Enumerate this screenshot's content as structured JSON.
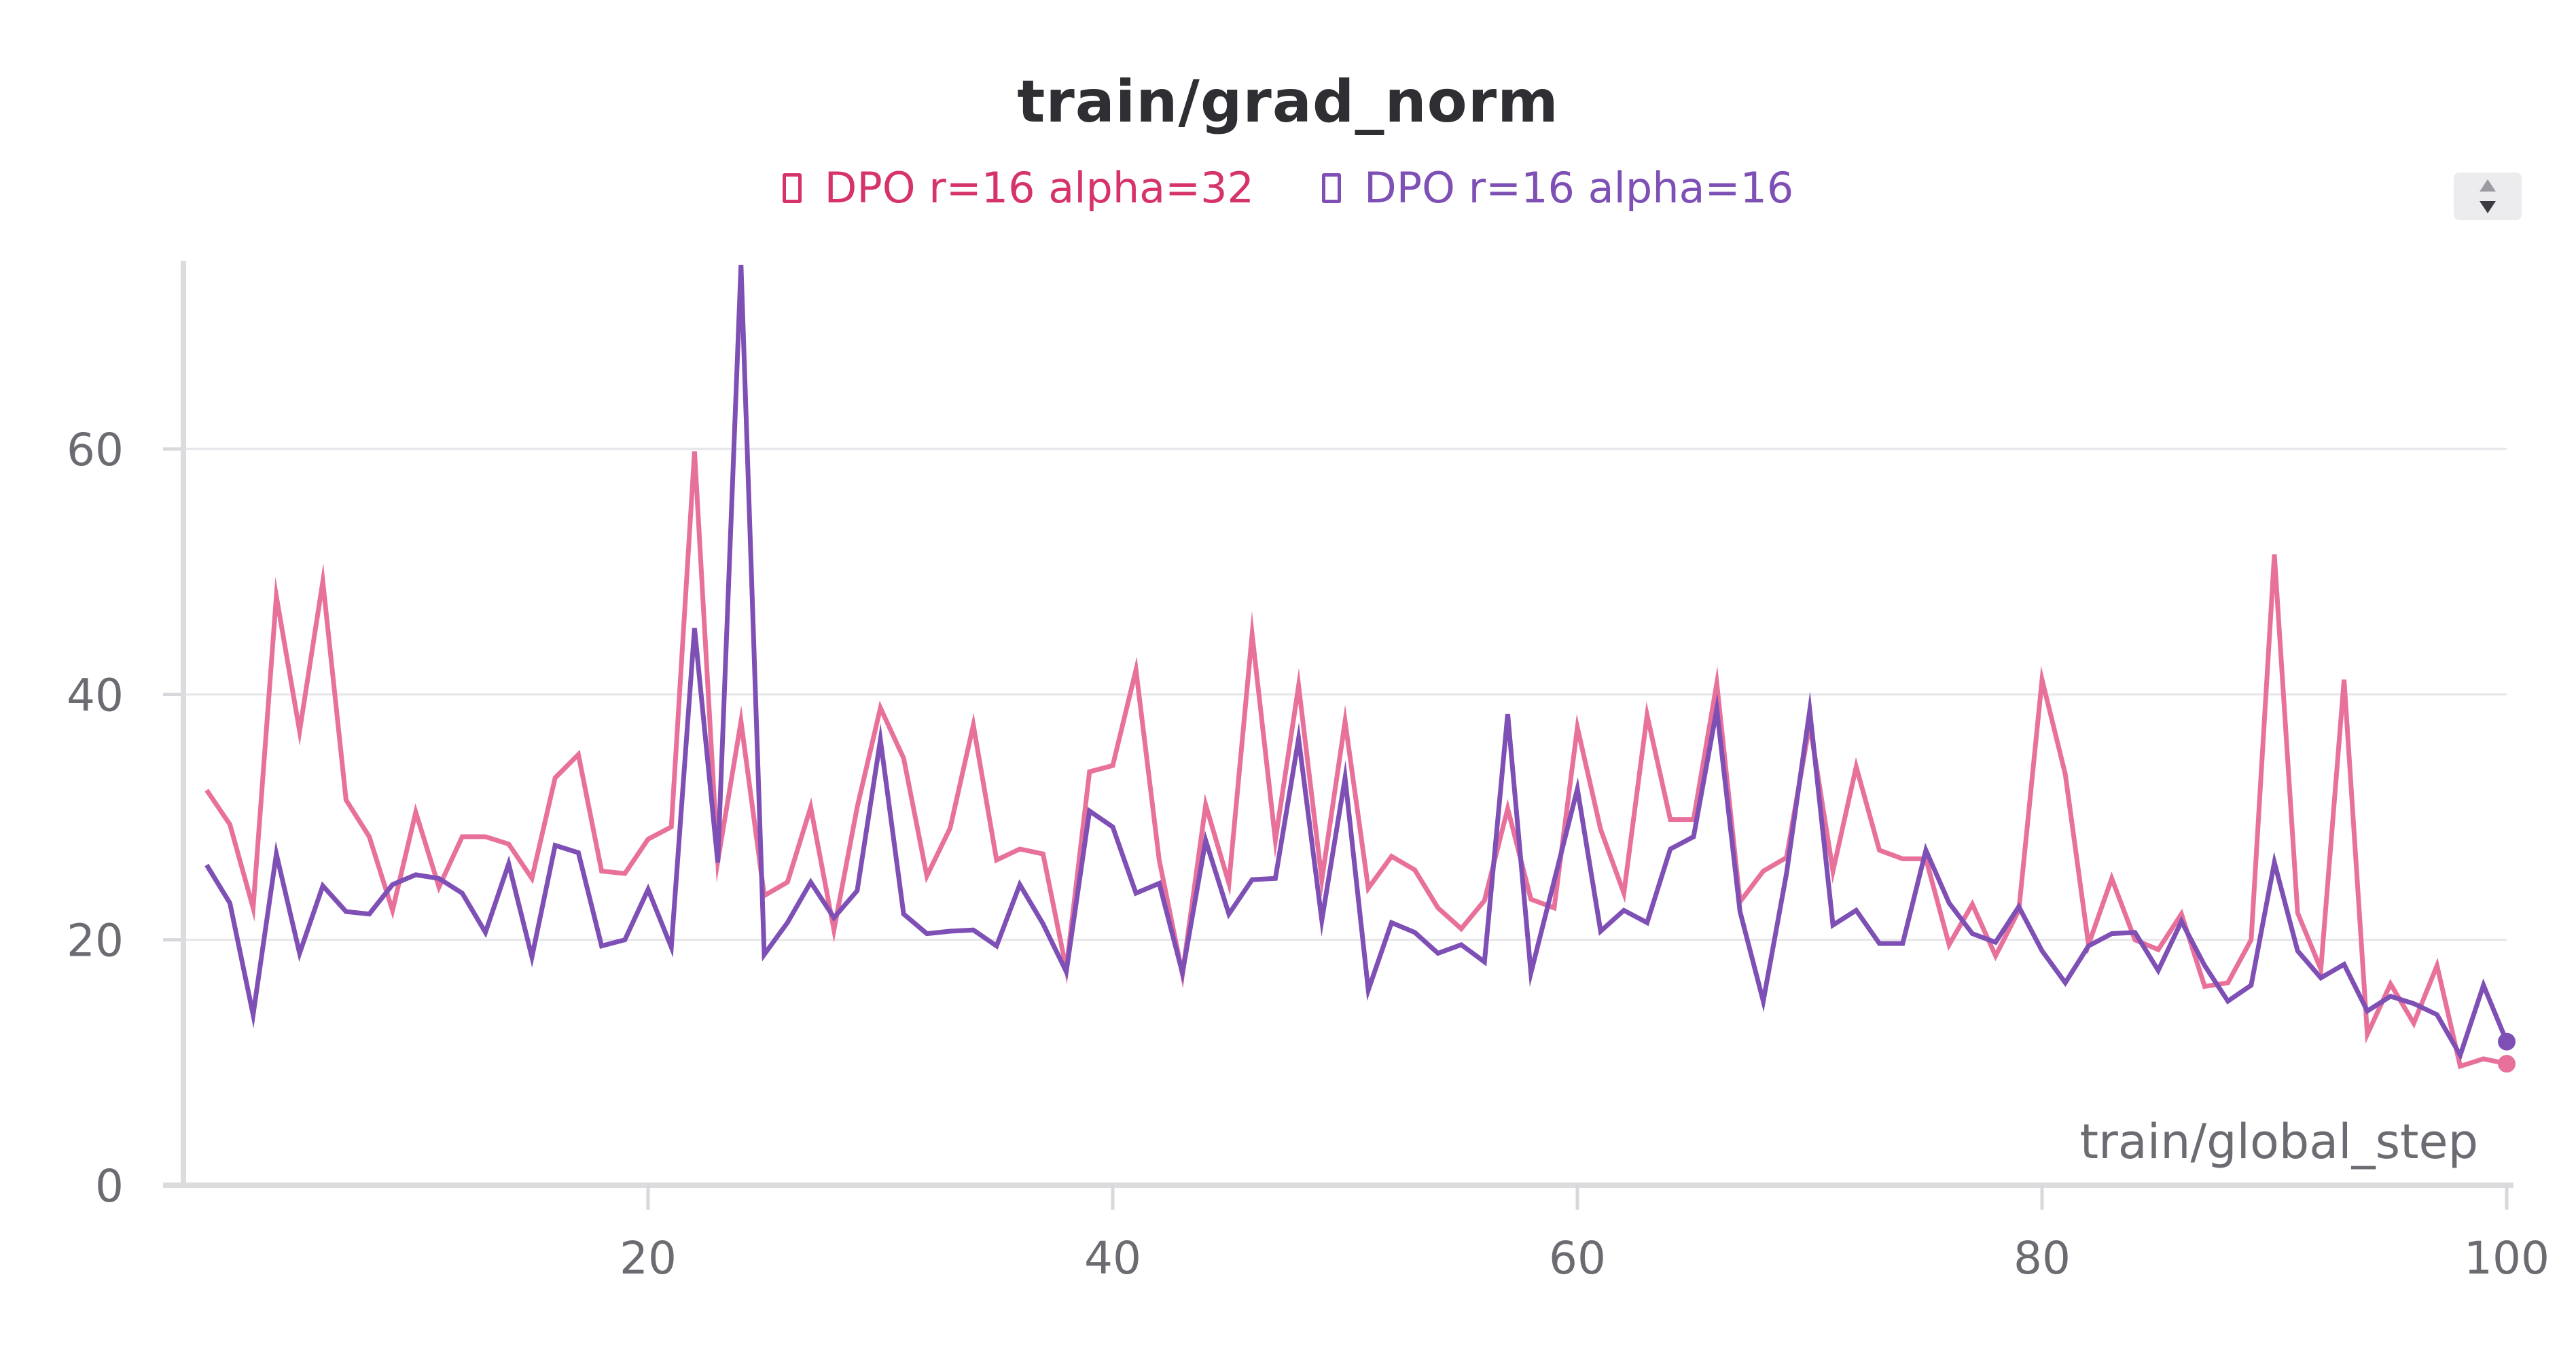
{
  "chart_data": {
    "type": "line",
    "title": "train/grad_norm",
    "xlabel": "train/global_step",
    "ylabel": "",
    "xlim": [
      0,
      100
    ],
    "ylim": [
      0,
      75
    ],
    "x_ticks": [
      20,
      40,
      60,
      80,
      100
    ],
    "x_tick_labels": [
      "20",
      "40",
      "60",
      "80",
      "100"
    ],
    "y_ticks": [
      0,
      20,
      40,
      60
    ],
    "y_tick_labels": [
      "0",
      "20",
      "40",
      "60"
    ],
    "grid": true,
    "legend_position": "top-center",
    "series": [
      {
        "name": "DPO r=16 alpha=32",
        "color": "#e8719c",
        "label_color": "#d6336c",
        "x": [
          1,
          2,
          3,
          4,
          5,
          6,
          7,
          8,
          9,
          10,
          11,
          12,
          13,
          14,
          15,
          16,
          17,
          18,
          19,
          20,
          21,
          22,
          23,
          24,
          25,
          26,
          27,
          28,
          29,
          30,
          31,
          32,
          33,
          34,
          35,
          36,
          37,
          38,
          39,
          40,
          41,
          42,
          43,
          44,
          45,
          46,
          47,
          48,
          49,
          50,
          51,
          52,
          53,
          54,
          55,
          56,
          57,
          58,
          59,
          60,
          61,
          62,
          63,
          64,
          65,
          66,
          67,
          68,
          69,
          70,
          71,
          72,
          73,
          74,
          75,
          76,
          77,
          78,
          79,
          80,
          81,
          82,
          83,
          84,
          85,
          86,
          87,
          88,
          89,
          90,
          91,
          92,
          93,
          94,
          95,
          96,
          97,
          98,
          99,
          100
        ],
        "values": [
          32.2,
          29.4,
          22.6,
          48.0,
          37.0,
          49.2,
          31.4,
          28.4,
          22.4,
          30.4,
          24.3,
          28.4,
          28.4,
          27.8,
          25.0,
          33.2,
          35.1,
          25.6,
          25.4,
          28.2,
          29.2,
          59.8,
          26.4,
          37.8,
          23.6,
          24.7,
          30.8,
          20.8,
          30.8,
          38.9,
          34.8,
          25.2,
          29.1,
          37.5,
          26.5,
          27.4,
          27.0,
          17.6,
          33.7,
          34.2,
          42.0,
          26.5,
          17.2,
          31.0,
          24.6,
          44.9,
          28.1,
          40.7,
          24.9,
          37.8,
          24.2,
          26.8,
          25.7,
          22.6,
          20.9,
          23.2,
          30.7,
          23.3,
          22.6,
          37.3,
          29.0,
          23.8,
          38.3,
          29.8,
          29.8,
          40.9,
          23.1,
          25.6,
          26.7,
          37.6,
          25.6,
          34.1,
          27.3,
          26.6,
          26.6,
          19.6,
          22.9,
          18.7,
          22.4,
          41.2,
          33.5,
          19.6,
          25.0,
          20.0,
          19.2,
          22.1,
          16.2,
          16.5,
          20.0,
          51.4,
          22.2,
          17.6,
          41.2,
          12.3,
          16.4,
          13.2,
          17.9,
          9.7,
          10.3,
          9.9
        ]
      },
      {
        "name": "DPO r=16 alpha=16",
        "color": "#7e4fb4",
        "label_color": "#7e4fb4",
        "x": [
          1,
          2,
          3,
          4,
          5,
          6,
          7,
          8,
          9,
          10,
          11,
          12,
          13,
          14,
          15,
          16,
          17,
          18,
          19,
          20,
          21,
          22,
          23,
          24,
          25,
          26,
          27,
          28,
          29,
          30,
          31,
          32,
          33,
          34,
          35,
          36,
          37,
          38,
          39,
          40,
          41,
          42,
          43,
          44,
          45,
          46,
          47,
          48,
          49,
          50,
          51,
          52,
          53,
          54,
          55,
          56,
          57,
          58,
          59,
          60,
          61,
          62,
          63,
          64,
          65,
          66,
          67,
          68,
          69,
          70,
          71,
          72,
          73,
          74,
          75,
          76,
          77,
          78,
          79,
          80,
          81,
          82,
          83,
          84,
          85,
          86,
          87,
          88,
          89,
          90,
          91,
          92,
          93,
          94,
          95,
          96,
          97,
          98,
          99,
          100
        ],
        "values": [
          26.1,
          23.0,
          13.9,
          27.0,
          18.9,
          24.4,
          22.3,
          22.1,
          24.5,
          25.3,
          25.0,
          23.8,
          20.6,
          26.2,
          18.6,
          27.7,
          27.1,
          19.5,
          20.0,
          24.1,
          19.4,
          45.4,
          26.3,
          75.0,
          18.8,
          21.4,
          24.7,
          21.8,
          24.0,
          36.3,
          22.1,
          20.5,
          20.7,
          20.8,
          19.5,
          24.5,
          21.3,
          17.4,
          30.5,
          29.2,
          23.8,
          24.6,
          17.3,
          28.1,
          22.1,
          24.9,
          25.0,
          36.4,
          21.6,
          33.2,
          15.9,
          21.4,
          20.6,
          18.9,
          19.6,
          18.2,
          38.4,
          17.3,
          24.8,
          32.3,
          20.7,
          22.4,
          21.4,
          27.4,
          28.4,
          38.8,
          22.3,
          15.0,
          25.4,
          38.7,
          21.2,
          22.4,
          19.7,
          19.7,
          27.3,
          23.0,
          20.5,
          19.8,
          22.7,
          19.1,
          16.5,
          19.5,
          20.5,
          20.6,
          17.5,
          21.5,
          17.9,
          15.0,
          16.3,
          26.3,
          19.1,
          16.9,
          18.0,
          14.2,
          15.4,
          14.8,
          13.9,
          10.6,
          16.3,
          11.7
        ]
      }
    ]
  }
}
